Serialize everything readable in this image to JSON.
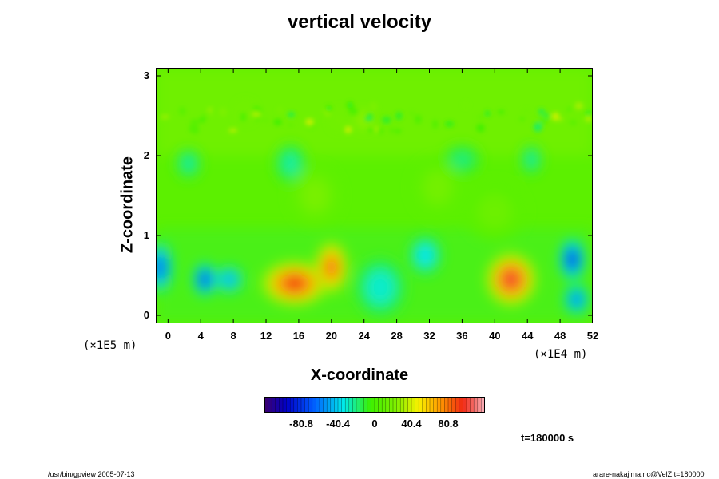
{
  "chart_data": {
    "type": "heatmap",
    "title": "vertical velocity",
    "xlabel": "X-coordinate",
    "ylabel": "Z-coordinate",
    "x_unit": "(×1E4 m)",
    "y_unit": "(×1E5 m)",
    "xlim": [
      -1.5,
      52
    ],
    "ylim": [
      -0.1,
      3.1
    ],
    "x_ticks": [
      "0",
      "4",
      "8",
      "12",
      "16",
      "20",
      "24",
      "28",
      "32",
      "36",
      "40",
      "44",
      "48",
      "52"
    ],
    "y_ticks": [
      "0",
      "1",
      "2",
      "3"
    ],
    "colorbar": {
      "ticks": [
        "-80.8",
        "-40.4",
        "0",
        "40.4",
        "80.8"
      ],
      "range": [
        -121.2,
        121.2
      ]
    },
    "time_label": "t=180000 s",
    "features": [
      {
        "x": 15.5,
        "z": 0.4,
        "value": 95,
        "rx": 3.2,
        "rz": 0.22
      },
      {
        "x": 20.0,
        "z": 0.6,
        "value": 85,
        "rx": 1.6,
        "rz": 0.26
      },
      {
        "x": 42.0,
        "z": 0.45,
        "value": 100,
        "rx": 2.4,
        "rz": 0.26
      },
      {
        "x": 4.5,
        "z": 0.45,
        "value": -80,
        "rx": 1.1,
        "rz": 0.16
      },
      {
        "x": 7.5,
        "z": 0.45,
        "value": -45,
        "rx": 1.4,
        "rz": 0.14
      },
      {
        "x": 49.5,
        "z": 0.7,
        "value": -85,
        "rx": 1.2,
        "rz": 0.2
      },
      {
        "x": -1.0,
        "z": 0.6,
        "value": -70,
        "rx": 1.2,
        "rz": 0.25
      },
      {
        "x": 50.0,
        "z": 0.2,
        "value": -55,
        "rx": 1.2,
        "rz": 0.15
      },
      {
        "x": 31.5,
        "z": 0.75,
        "value": -35,
        "rx": 1.6,
        "rz": 0.2
      },
      {
        "x": 26.0,
        "z": 0.35,
        "value": -30,
        "rx": 2.5,
        "rz": 0.3
      },
      {
        "x": 2.5,
        "z": 1.9,
        "value": -25,
        "rx": 1.2,
        "rz": 0.15
      },
      {
        "x": 15.0,
        "z": 1.9,
        "value": -25,
        "rx": 1.5,
        "rz": 0.2
      },
      {
        "x": 36.0,
        "z": 1.95,
        "value": -20,
        "rx": 1.8,
        "rz": 0.15
      },
      {
        "x": 44.5,
        "z": 1.95,
        "value": -25,
        "rx": 1.0,
        "rz": 0.15
      },
      {
        "x": 24.0,
        "z": 2.45,
        "value": 40,
        "rx": 0.6,
        "rz": 0.08
      },
      {
        "x": 21.0,
        "z": 2.45,
        "value": 25,
        "rx": 0.6,
        "rz": 0.08
      },
      {
        "x": 9.5,
        "z": 2.55,
        "value": 25,
        "rx": 0.6,
        "rz": 0.08
      },
      {
        "x": 18.0,
        "z": 1.5,
        "value": 20,
        "rx": 2.5,
        "rz": 0.3
      },
      {
        "x": 33.0,
        "z": 1.6,
        "value": 18,
        "rx": 2.5,
        "rz": 0.3
      },
      {
        "x": 40.0,
        "z": 1.3,
        "value": 15,
        "rx": 3.0,
        "rz": 0.3
      }
    ]
  },
  "footer": {
    "left": "/usr/bin/gpview 2005-07-13",
    "right": "arare-nakajima.nc@VelZ,t=180000"
  }
}
